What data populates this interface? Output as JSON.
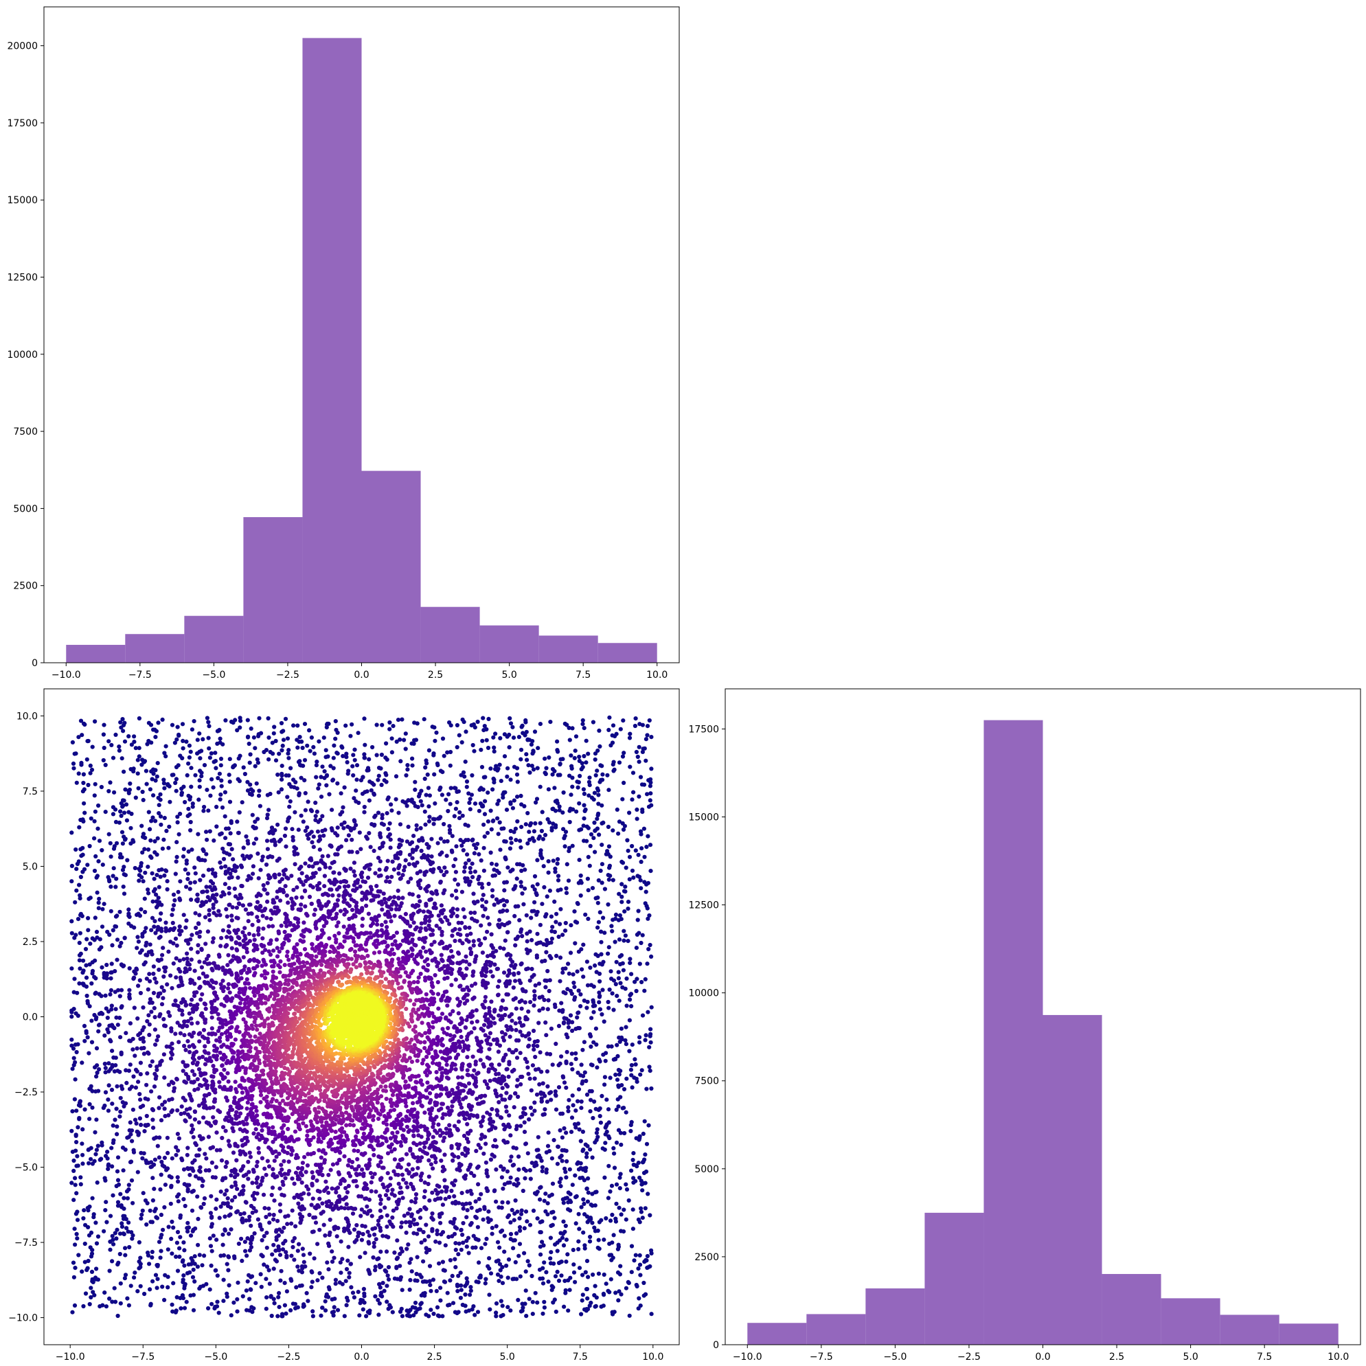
{
  "figure": {
    "background": "#ffffff",
    "bar_color": "#9467bd",
    "scatter_colormap": "plasma"
  },
  "chart_data": [
    {
      "panel": "top-left",
      "type": "bar",
      "bin_edges": [
        -10,
        -8,
        -6,
        -4,
        -2,
        0,
        2,
        4,
        6,
        8,
        10
      ],
      "values": [
        580,
        930,
        1520,
        4720,
        20250,
        6220,
        1810,
        1210,
        880,
        640
      ],
      "xlim": [
        -10.75,
        10.75
      ],
      "ylim": [
        0,
        21260
      ],
      "x_ticks": [
        -10,
        -7.5,
        -5,
        -2.5,
        0,
        2.5,
        5,
        7.5,
        10
      ],
      "x_tick_labels": [
        "−10.0",
        "−7.5",
        "−5.0",
        "−2.5",
        "0.0",
        "2.5",
        "5.0",
        "7.5",
        "10.0"
      ],
      "y_ticks": [
        0,
        2500,
        5000,
        7500,
        10000,
        12500,
        15000,
        17500,
        20000
      ],
      "y_tick_labels": [
        "0",
        "2500",
        "5000",
        "7500",
        "10000",
        "12500",
        "15000",
        "17500",
        "20000"
      ],
      "grid": false,
      "color": "#9467bd"
    },
    {
      "panel": "bottom-left",
      "type": "scatter",
      "points_description": "dense cloud of points uniformly covering the square [-10,10]x[-10,10], denser near the origin; colored by local density with the plasma colormap (dark indigo sparse, bright yellow at the dense core at (0,0)); a darker magenta lobe extends toward (-2,-1)",
      "density_peak": [
        0,
        0
      ],
      "xlim": [
        -10.9,
        10.9
      ],
      "ylim": [
        -10.9,
        10.9
      ],
      "x_ticks": [
        -10,
        -7.5,
        -5,
        -2.5,
        0,
        2.5,
        5,
        7.5,
        10
      ],
      "x_tick_labels": [
        "−10.0",
        "−7.5",
        "−5.0",
        "−2.5",
        "0.0",
        "2.5",
        "5.0",
        "7.5",
        "10.0"
      ],
      "y_ticks": [
        -10,
        -7.5,
        -5,
        -2.5,
        0,
        2.5,
        5,
        7.5,
        10
      ],
      "y_tick_labels": [
        "−10.0",
        "−7.5",
        "−5.0",
        "−2.5",
        "0.0",
        "2.5",
        "5.0",
        "7.5",
        "10.0"
      ],
      "grid": false,
      "colors": [
        "#0d0887",
        "#6a00a8",
        "#b12a90",
        "#e16462",
        "#fca636",
        "#f0f921"
      ]
    },
    {
      "panel": "bottom-right",
      "type": "bar",
      "bin_edges": [
        -10,
        -8,
        -6,
        -4,
        -2,
        0,
        2,
        4,
        6,
        8,
        10
      ],
      "values": [
        620,
        870,
        1600,
        3750,
        17750,
        9370,
        2010,
        1320,
        850,
        600
      ],
      "xlim": [
        -10.75,
        10.75
      ],
      "ylim": [
        0,
        18640
      ],
      "x_ticks": [
        -10,
        -7.5,
        -5,
        -2.5,
        0,
        2.5,
        5,
        7.5,
        10
      ],
      "x_tick_labels": [
        "−10.0",
        "−7.5",
        "−5.0",
        "−2.5",
        "0.0",
        "2.5",
        "5.0",
        "7.5",
        "10.0"
      ],
      "y_ticks": [
        0,
        2500,
        5000,
        7500,
        10000,
        12500,
        15000,
        17500
      ],
      "y_tick_labels": [
        "0",
        "2500",
        "5000",
        "7500",
        "10000",
        "12500",
        "15000",
        "17500"
      ],
      "grid": false,
      "color": "#9467bd"
    }
  ]
}
